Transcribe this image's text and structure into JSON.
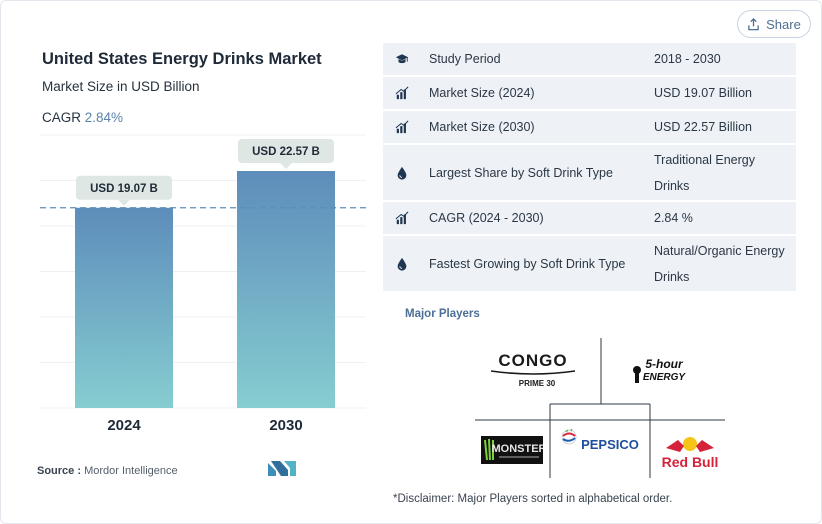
{
  "share_button": {
    "label": "Share",
    "icon": "share-icon"
  },
  "title": "United States Energy Drinks Market",
  "subtitle": "Market Size in USD Billion",
  "cagr": {
    "label": "CAGR",
    "value": "2.84%"
  },
  "chart_data": {
    "type": "bar",
    "categories": [
      "2024",
      "2030"
    ],
    "values": [
      19.07,
      22.57
    ],
    "data_labels": [
      "USD 19.07 B",
      "USD 22.57 B"
    ],
    "title": "United States Energy Drinks Market",
    "subtitle": "Market Size in USD Billion",
    "ylabel": "",
    "xlabel": "",
    "ylim": [
      0,
      26
    ],
    "grid": true,
    "reference_line": {
      "value": 19.07,
      "style": "dashed"
    },
    "colors": {
      "bar_top": "#5d8dbb",
      "bar_bottom": "#86cdd0",
      "label_bg": "#dfe7e4",
      "refline": "#5d8dbb"
    }
  },
  "source": {
    "label": "Source :",
    "value": "Mordor Intelligence"
  },
  "info_table": [
    {
      "icon": "graduation-cap-icon",
      "label": "Study Period",
      "value": "2018 - 2030"
    },
    {
      "icon": "bar-growth-icon",
      "label": "Market Size (2024)",
      "value": "USD 19.07 Billion"
    },
    {
      "icon": "bar-growth-icon",
      "label": "Market Size (2030)",
      "value": "USD 22.57 Billion"
    },
    {
      "icon": "drop-icon",
      "label": "Largest Share by Soft Drink Type",
      "value": "Traditional Energy Drinks"
    },
    {
      "icon": "bar-growth-icon",
      "label": "CAGR (2024 - 2030)",
      "value": "2.84 %"
    },
    {
      "icon": "drop-icon",
      "label": "Fastest Growing by Soft Drink Type",
      "value": "Natural/Organic Energy Drinks"
    }
  ],
  "players": {
    "label": "Major Players",
    "logos": {
      "congo": {
        "name": "CONGO",
        "tag": "PRIME 30"
      },
      "five_hour": {
        "name": "5-hour",
        "sub": "ENERGY"
      },
      "monster": {
        "name": "MONSTER"
      },
      "pepsico": {
        "name": "PEPSICO"
      },
      "redbull": {
        "name": "Red Bull"
      }
    },
    "disclaimer": "*Disclaimer: Major Players sorted in alphabetical order."
  }
}
